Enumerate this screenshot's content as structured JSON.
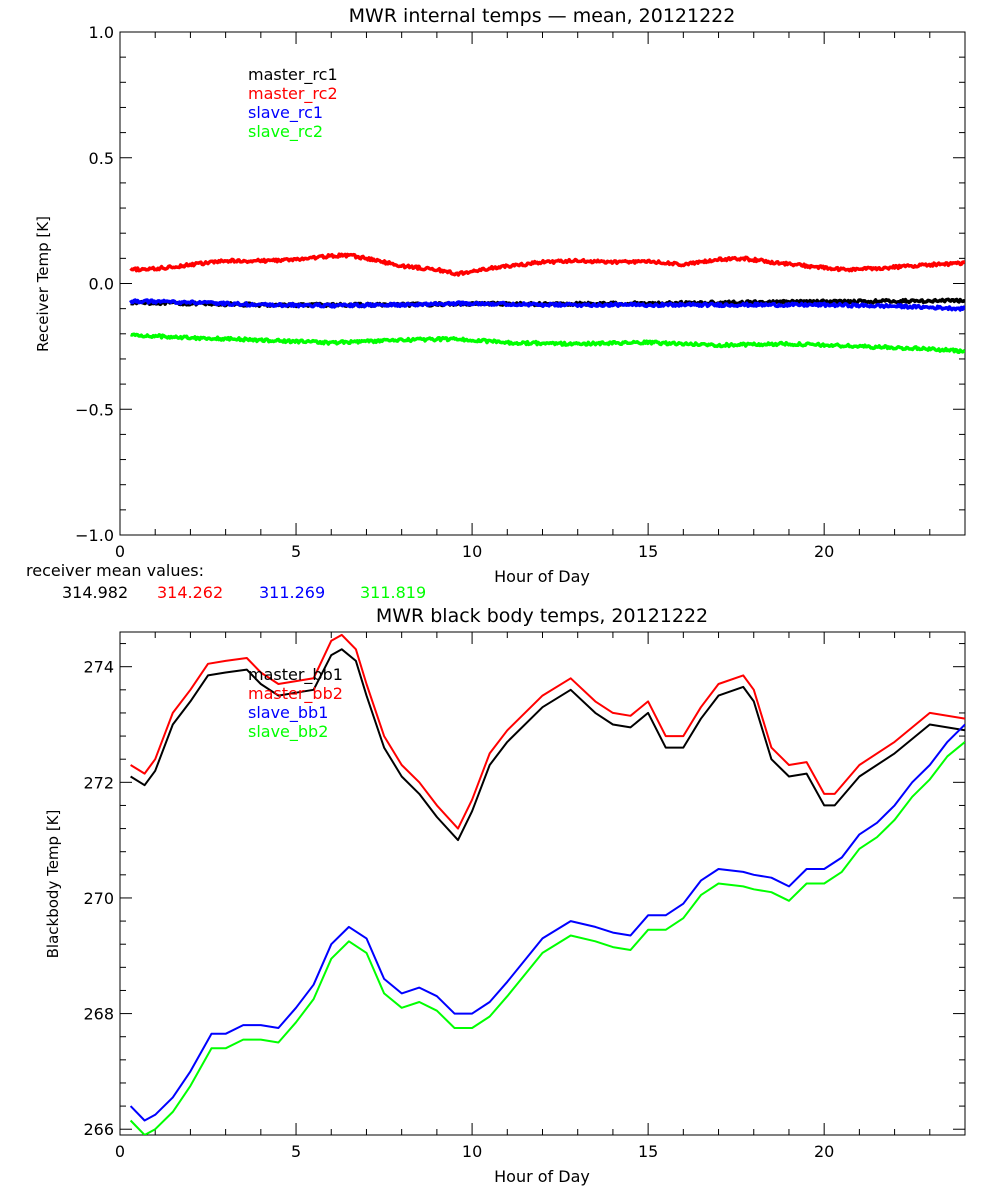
{
  "colors": {
    "black": "#000000",
    "red": "#ff0000",
    "blue": "#0000ff",
    "green": "#00ff00"
  },
  "mean_values": {
    "label": "receiver mean values:",
    "items": [
      {
        "text": "314.982",
        "color": "#000000"
      },
      {
        "text": "314.262",
        "color": "#ff0000"
      },
      {
        "text": "311.269",
        "color": "#0000ff"
      },
      {
        "text": "311.819",
        "color": "#00ff00"
      }
    ]
  },
  "chart_data": [
    {
      "type": "line",
      "title": "MWR internal temps — mean, 20121222",
      "xlabel": "Hour of Day",
      "ylabel": "Receiver Temp [K]",
      "xlim": [
        0,
        24
      ],
      "ylim": [
        -1.0,
        1.0
      ],
      "xticks": [
        0,
        5,
        10,
        15,
        20
      ],
      "yticks": [
        -1.0,
        -0.5,
        0.0,
        0.5,
        1.0
      ],
      "ytick_labels": [
        "−1.0",
        "−0.5",
        "0.0",
        "0.5",
        "1.0"
      ],
      "legend": "top-left",
      "noise": 0.006,
      "series": [
        {
          "name": "master_rc1",
          "color": "#000000",
          "x": [
            0.3,
            2,
            4,
            6,
            8,
            10,
            12,
            14,
            16,
            18,
            20,
            22,
            24
          ],
          "y": [
            -0.075,
            -0.08,
            -0.085,
            -0.085,
            -0.085,
            -0.08,
            -0.082,
            -0.08,
            -0.078,
            -0.075,
            -0.072,
            -0.07,
            -0.068
          ]
        },
        {
          "name": "master_rc2",
          "color": "#ff0000",
          "x": [
            0.3,
            1,
            2,
            3,
            4,
            5,
            6,
            6.5,
            7,
            8,
            9,
            9.6,
            10.5,
            12,
            13,
            14,
            15,
            16,
            17,
            17.7,
            18.5,
            19.5,
            20.5,
            21.5,
            23,
            24
          ],
          "y": [
            0.055,
            0.058,
            0.075,
            0.09,
            0.09,
            0.095,
            0.11,
            0.112,
            0.1,
            0.07,
            0.055,
            0.038,
            0.06,
            0.085,
            0.09,
            0.085,
            0.088,
            0.075,
            0.095,
            0.1,
            0.085,
            0.07,
            0.055,
            0.06,
            0.075,
            0.08
          ]
        },
        {
          "name": "slave_rc1",
          "color": "#0000ff",
          "x": [
            0.3,
            2,
            4,
            6,
            8,
            10,
            12,
            14,
            16,
            18,
            20,
            22,
            24
          ],
          "y": [
            -0.07,
            -0.075,
            -0.085,
            -0.088,
            -0.085,
            -0.078,
            -0.085,
            -0.085,
            -0.085,
            -0.085,
            -0.085,
            -0.09,
            -0.1
          ]
        },
        {
          "name": "slave_rc2",
          "color": "#00ff00",
          "x": [
            0.3,
            2,
            4,
            6,
            7,
            8,
            9.5,
            11,
            13,
            15,
            17,
            19,
            21,
            22,
            23,
            24
          ],
          "y": [
            -0.205,
            -0.215,
            -0.225,
            -0.235,
            -0.23,
            -0.225,
            -0.22,
            -0.235,
            -0.24,
            -0.235,
            -0.245,
            -0.24,
            -0.25,
            -0.255,
            -0.26,
            -0.27
          ]
        }
      ]
    },
    {
      "type": "line",
      "title": "MWR black body temps, 20121222",
      "xlabel": "Hour of Day",
      "ylabel": "Blackbody Temp [K]",
      "xlim": [
        0,
        24
      ],
      "ylim": [
        265.9,
        274.6
      ],
      "xticks": [
        0,
        5,
        10,
        15,
        20
      ],
      "yticks": [
        266,
        268,
        270,
        272,
        274
      ],
      "ytick_labels": [
        "266",
        "268",
        "270",
        "272",
        "274"
      ],
      "legend": "top-center",
      "noise": 0,
      "series": [
        {
          "name": "master_bb1",
          "color": "#000000",
          "x": [
            0.3,
            0.7,
            1.0,
            1.5,
            2.0,
            2.5,
            3.0,
            3.6,
            4.0,
            4.5,
            5.0,
            5.5,
            6.0,
            6.3,
            6.7,
            7.0,
            7.5,
            8.0,
            8.5,
            9.0,
            9.6,
            10.0,
            10.5,
            11.0,
            12.0,
            12.8,
            13.5,
            14.0,
            14.5,
            15.0,
            15.5,
            16.0,
            16.5,
            17.0,
            17.7,
            18.0,
            18.5,
            19.0,
            19.5,
            20.0,
            20.3,
            21.0,
            22.0,
            23.0,
            24.0
          ],
          "y": [
            272.1,
            271.95,
            272.2,
            273.0,
            273.4,
            273.85,
            273.9,
            273.95,
            273.7,
            273.5,
            273.55,
            273.6,
            274.2,
            274.3,
            274.1,
            273.5,
            272.6,
            272.1,
            271.8,
            271.4,
            271.0,
            271.5,
            272.3,
            272.7,
            273.3,
            273.6,
            273.2,
            273.0,
            272.95,
            273.2,
            272.6,
            272.6,
            273.1,
            273.5,
            273.65,
            273.4,
            272.4,
            272.1,
            272.15,
            271.6,
            271.6,
            272.1,
            272.5,
            273.0,
            272.9
          ]
        },
        {
          "name": "master_bb2",
          "color": "#ff0000",
          "x": [
            0.3,
            0.7,
            1.0,
            1.5,
            2.0,
            2.5,
            3.0,
            3.6,
            4.0,
            4.5,
            5.0,
            5.5,
            6.0,
            6.3,
            6.7,
            7.0,
            7.5,
            8.0,
            8.5,
            9.0,
            9.6,
            10.0,
            10.5,
            11.0,
            12.0,
            12.8,
            13.5,
            14.0,
            14.5,
            15.0,
            15.5,
            16.0,
            16.5,
            17.0,
            17.7,
            18.0,
            18.5,
            19.0,
            19.5,
            20.0,
            20.3,
            21.0,
            22.0,
            23.0,
            24.0
          ],
          "y": [
            272.3,
            272.15,
            272.4,
            273.2,
            273.6,
            274.05,
            274.1,
            274.15,
            273.9,
            273.7,
            273.75,
            273.8,
            274.45,
            274.55,
            274.3,
            273.7,
            272.8,
            272.3,
            272.0,
            271.6,
            271.2,
            271.7,
            272.5,
            272.9,
            273.5,
            273.8,
            273.4,
            273.2,
            273.15,
            273.4,
            272.8,
            272.8,
            273.3,
            273.7,
            273.85,
            273.6,
            272.6,
            272.3,
            272.35,
            271.8,
            271.8,
            272.3,
            272.7,
            273.2,
            273.1
          ]
        },
        {
          "name": "slave_bb1",
          "color": "#0000ff",
          "x": [
            0.3,
            0.7,
            1.0,
            1.5,
            2.0,
            2.6,
            3.0,
            3.5,
            4.0,
            4.5,
            5.0,
            5.5,
            6.0,
            6.5,
            7.0,
            7.5,
            8.0,
            8.5,
            9.0,
            9.5,
            10.0,
            10.5,
            11.0,
            12.0,
            12.8,
            13.5,
            14.0,
            14.5,
            15.0,
            15.5,
            16.0,
            16.5,
            17.0,
            17.7,
            18.0,
            18.5,
            19.0,
            19.5,
            20.0,
            20.5,
            21.0,
            21.5,
            22.0,
            22.5,
            23.0,
            23.5,
            24.0
          ],
          "y": [
            266.4,
            266.15,
            266.25,
            266.55,
            267.0,
            267.65,
            267.65,
            267.8,
            267.8,
            267.75,
            268.1,
            268.5,
            269.2,
            269.5,
            269.3,
            268.6,
            268.35,
            268.45,
            268.3,
            268.0,
            268.0,
            268.2,
            268.55,
            269.3,
            269.6,
            269.5,
            269.4,
            269.35,
            269.7,
            269.7,
            269.9,
            270.3,
            270.5,
            270.45,
            270.4,
            270.35,
            270.2,
            270.5,
            270.5,
            270.7,
            271.1,
            271.3,
            271.6,
            272.0,
            272.3,
            272.7,
            273.0
          ]
        },
        {
          "name": "slave_bb2",
          "color": "#00ff00",
          "x": [
            0.3,
            0.7,
            1.0,
            1.5,
            2.0,
            2.6,
            3.0,
            3.5,
            4.0,
            4.5,
            5.0,
            5.5,
            6.0,
            6.5,
            7.0,
            7.5,
            8.0,
            8.5,
            9.0,
            9.5,
            10.0,
            10.5,
            11.0,
            12.0,
            12.8,
            13.5,
            14.0,
            14.5,
            15.0,
            15.5,
            16.0,
            16.5,
            17.0,
            17.7,
            18.0,
            18.5,
            19.0,
            19.5,
            20.0,
            20.5,
            21.0,
            21.5,
            22.0,
            22.5,
            23.0,
            23.5,
            24.0
          ],
          "y": [
            266.15,
            265.9,
            266.0,
            266.3,
            266.75,
            267.4,
            267.4,
            267.55,
            267.55,
            267.5,
            267.85,
            268.25,
            268.95,
            269.25,
            269.05,
            268.35,
            268.1,
            268.2,
            268.05,
            267.75,
            267.75,
            267.95,
            268.3,
            269.05,
            269.35,
            269.25,
            269.15,
            269.1,
            269.45,
            269.45,
            269.65,
            270.05,
            270.25,
            270.2,
            270.15,
            270.1,
            269.95,
            270.25,
            270.25,
            270.45,
            270.85,
            271.05,
            271.35,
            271.75,
            272.05,
            272.45,
            272.7
          ]
        }
      ]
    }
  ]
}
